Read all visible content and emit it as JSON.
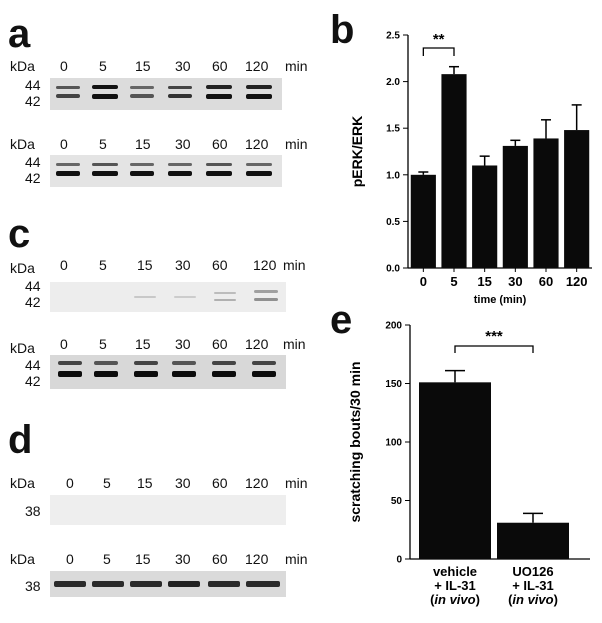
{
  "panels": {
    "a": {
      "letter": "a",
      "blots": [
        {
          "kda_label": "kDa",
          "mw": [
            "44",
            "42"
          ],
          "lanes": [
            "0",
            "5",
            "15",
            "30",
            "60",
            "120"
          ],
          "unit": "min"
        },
        {
          "kda_label": "kDa",
          "mw": [
            "44",
            "42"
          ],
          "lanes": [
            "0",
            "5",
            "15",
            "30",
            "60",
            "120"
          ],
          "unit": "min"
        }
      ]
    },
    "c": {
      "letter": "c",
      "blots": [
        {
          "kda_label": "kDa",
          "mw": [
            "44",
            "42"
          ],
          "lanes": [
            "0",
            "5",
            "15",
            "30",
            "60",
            "120"
          ],
          "unit": "min"
        },
        {
          "kda_label": "kDa",
          "mw": [
            "44",
            "42"
          ],
          "lanes": [
            "0",
            "5",
            "15",
            "30",
            "60",
            "120"
          ],
          "unit": "min"
        }
      ]
    },
    "d": {
      "letter": "d",
      "blots": [
        {
          "kda_label": "kDa",
          "mw": [
            "38"
          ],
          "lanes": [
            "0",
            "5",
            "15",
            "30",
            "60",
            "120"
          ],
          "unit": "min"
        },
        {
          "kda_label": "kDa",
          "mw": [
            "38"
          ],
          "lanes": [
            "0",
            "5",
            "15",
            "30",
            "60",
            "120"
          ],
          "unit": "min"
        }
      ]
    }
  },
  "chart_data": [
    {
      "panel": "b",
      "type": "bar",
      "categories": [
        "0",
        "5",
        "15",
        "30",
        "60",
        "120"
      ],
      "values": [
        1.0,
        2.08,
        1.1,
        1.31,
        1.39,
        1.48
      ],
      "errors": [
        0.03,
        0.08,
        0.1,
        0.06,
        0.2,
        0.27
      ],
      "xlabel": "time (min)",
      "ylabel": "pERK/ERK",
      "ylim": [
        0,
        2.5
      ],
      "yticks": [
        "0.0",
        "0.5",
        "1.0",
        "1.5",
        "2.0",
        "2.5"
      ],
      "significance": {
        "from": "0",
        "to": "5",
        "label": "**"
      },
      "grid": false
    },
    {
      "panel": "e",
      "type": "bar",
      "categories": [
        "vehicle\n+ IL-31\n(in vivo)",
        "UO126\n+ IL-31\n(in vivo)"
      ],
      "category_lines": [
        [
          "vehicle",
          "+ IL-31",
          "(",
          "in vivo",
          ")"
        ],
        [
          "UO126",
          "+ IL-31",
          "(",
          "in vivo",
          ")"
        ]
      ],
      "values": [
        151,
        31
      ],
      "errors": [
        10,
        8
      ],
      "xlabel": "",
      "ylabel": "scratching bouts/30 min",
      "ylim": [
        0,
        200
      ],
      "yticks": [
        "0",
        "50",
        "100",
        "150",
        "200"
      ],
      "significance": {
        "from": 0,
        "to": 1,
        "label": "***"
      },
      "grid": false
    }
  ]
}
